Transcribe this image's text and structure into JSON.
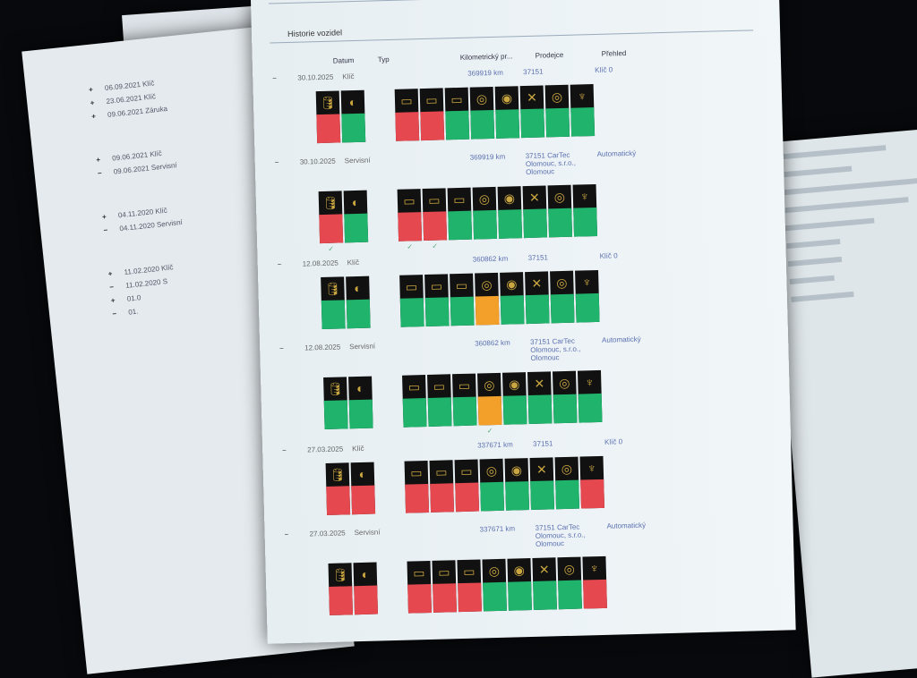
{
  "colors": {
    "red": "#e5484f",
    "green": "#1fb36c",
    "orange": "#f3a02a",
    "dark": "#111111",
    "icon": "#c9a640"
  },
  "icons": [
    "oil-can-icon",
    "brake-fluid-icon",
    "brake-pad-front-icon",
    "brake-pad-rear-icon",
    "brake-pad-icon",
    "brake-disc-front-icon",
    "brake-disc-icon",
    "service-tools-icon",
    "brake-disc-rear-icon",
    "coolant-icon"
  ],
  "left_paper": {
    "rows": [
      {
        "sign": "+",
        "text": "06.09.2021 Klíč"
      },
      {
        "sign": "+",
        "text": "23.06.2021 Klíč"
      },
      {
        "sign": "+",
        "text": "09.06.2021 Záruka"
      },
      {
        "sign": "+",
        "text": "09.06.2021 Klíč"
      },
      {
        "sign": "−",
        "text": "09.06.2021 Servisní"
      },
      {
        "sign": "+",
        "text": "04.11.2020 Klíč"
      },
      {
        "sign": "−",
        "text": "04.11.2020 Servisní"
      },
      {
        "sign": "+",
        "text": "11.02.2020 Klíč"
      },
      {
        "sign": "−",
        "text": "11.02.2020 S"
      },
      {
        "sign": "+",
        "text": "01.0"
      },
      {
        "sign": "−",
        "text": "01."
      }
    ]
  },
  "main": {
    "title": "Historie vozidel",
    "headers": {
      "date": "Datum",
      "type": "Typ",
      "km": "Kilometrický pr...",
      "dealer": "Prodejce",
      "overview": "Přehled"
    },
    "entries": [
      {
        "sign": "−",
        "date": "30.10.2025",
        "type": "Klíč",
        "km": "369919 km",
        "dealer": "37151",
        "overview": "Klíč 0",
        "tiles": [
          "red",
          "green",
          "red",
          "red",
          "green",
          "green",
          "green",
          "green",
          "green",
          "green"
        ],
        "checks": []
      },
      {
        "sign": "−",
        "date": "30.10.2025",
        "type": "Servisní",
        "km": "369919 km",
        "dealer": "37151 CarTec Olomouc, s.r.o., Olomouc",
        "overview": "Automatický",
        "tiles": [
          "red",
          "green",
          "red",
          "red",
          "green",
          "green",
          "green",
          "green",
          "green",
          "green"
        ],
        "checks": [
          0,
          2,
          3
        ]
      },
      {
        "sign": "−",
        "date": "12.08.2025",
        "type": "Klíč",
        "km": "360862 km",
        "dealer": "37151",
        "overview": "Klíč 0",
        "tiles": [
          "green",
          "green",
          "green",
          "green",
          "green",
          "orange",
          "green",
          "green",
          "green",
          "green"
        ],
        "checks": []
      },
      {
        "sign": "−",
        "date": "12.08.2025",
        "type": "Servisní",
        "km": "360862 km",
        "dealer": "37151 CarTec Olomouc, s.r.o., Olomouc",
        "overview": "Automatický",
        "tiles": [
          "green",
          "green",
          "green",
          "green",
          "green",
          "orange",
          "green",
          "green",
          "green",
          "green"
        ],
        "checks": [
          5
        ]
      },
      {
        "sign": "−",
        "date": "27.03.2025",
        "type": "Klíč",
        "km": "337671 km",
        "dealer": "37151",
        "overview": "Klíč 0",
        "tiles": [
          "red",
          "red",
          "red",
          "red",
          "red",
          "green",
          "green",
          "green",
          "green",
          "red"
        ],
        "checks": []
      },
      {
        "sign": "−",
        "date": "27.03.2025",
        "type": "Servisní",
        "km": "337671 km",
        "dealer": "37151 CarTec Olomouc, s.r.o., Olomouc",
        "overview": "Automatický",
        "tiles": [
          "red",
          "red",
          "red",
          "red",
          "red",
          "green",
          "green",
          "green",
          "green",
          "red"
        ],
        "checks": []
      }
    ]
  }
}
